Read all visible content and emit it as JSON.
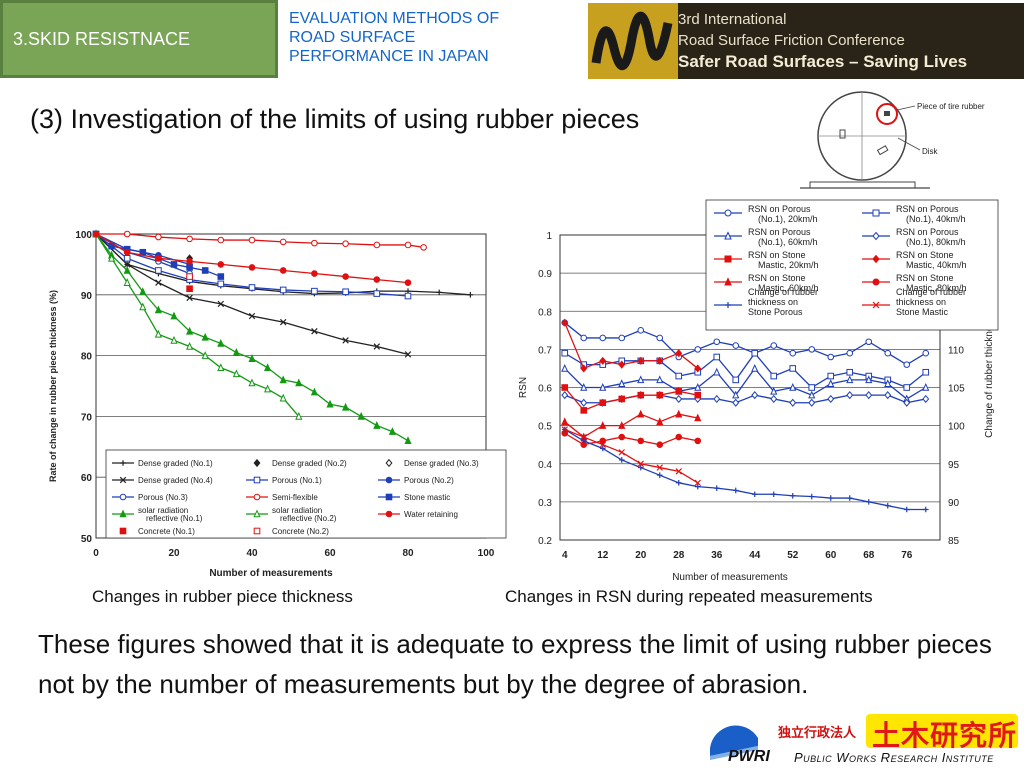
{
  "header": {
    "section_tab": "3.SKID RESISTNACE",
    "subtitle_lines": [
      "EVALUATION METHODS OF",
      "ROAD SURFACE",
      "PERFORMANCE IN JAPAN"
    ],
    "conference_lines": [
      "3rd International",
      "Road Surface Friction Conference",
      "Safer Road Surfaces – Saving Lives"
    ]
  },
  "heading": "(3) Investigation of the limits of using rubber pieces",
  "diagram": {
    "label_rubber": "Piece of tire rubber",
    "label_disk": "Disk"
  },
  "captions": {
    "left": "Changes in rubber piece thickness",
    "right": "Changes in RSN during repeated measurements"
  },
  "body_text": "These figures showed that it is adequate to express the limit of using rubber pieces not by the number of measurements but by the degree of abrasion.",
  "logo": {
    "jp_small": "独立行政法人",
    "jp_large": "土木研究所",
    "en": "Public Works Research Institute",
    "mark": "PWRI"
  },
  "colors": {
    "blue": "#1f3fb8",
    "red": "#e01010",
    "green": "#129a12",
    "black": "#222222",
    "tab_green": "#7aa456"
  },
  "chart_data": [
    {
      "type": "line",
      "ylabel": "Rate of change in rubber piece thickness (%)",
      "xlabel": "Number of measurements",
      "xlim": [
        0,
        100
      ],
      "ylim": [
        50,
        100
      ],
      "xticks": [
        0,
        20,
        40,
        60,
        80,
        100
      ],
      "yticks": [
        50,
        60,
        70,
        80,
        90,
        100
      ],
      "grid": true,
      "legend_position": "bottom",
      "series": [
        {
          "name": "Dense graded (No.1)",
          "color": "#222222",
          "marker": "plus",
          "x": [
            0,
            8,
            16,
            24,
            32,
            40,
            48,
            56,
            64,
            72,
            80,
            88,
            96
          ],
          "y": [
            100,
            95,
            93.5,
            92.2,
            91.5,
            91,
            90.5,
            90.2,
            90.3,
            90.6,
            90.6,
            90.4,
            90
          ]
        },
        {
          "name": "Dense graded (No.2)",
          "color": "#222222",
          "marker": "diamond-filled",
          "x": [
            24
          ],
          "y": [
            96
          ]
        },
        {
          "name": "Dense graded (No.3)",
          "color": "#222222",
          "marker": "diamond-open",
          "x": [
            24
          ],
          "y": [
            94.5
          ]
        },
        {
          "name": "Dense graded (No.4)",
          "color": "#222222",
          "marker": "x",
          "x": [
            0,
            8,
            16,
            24,
            32,
            40,
            48,
            56,
            64,
            72,
            80
          ],
          "y": [
            100,
            95,
            92,
            89.5,
            88.5,
            86.5,
            85.5,
            84,
            82.5,
            81.5,
            80.2
          ]
        },
        {
          "name": "Porous (No.1)",
          "color": "#1f3fb8",
          "marker": "square-open",
          "x": [
            0,
            8,
            16,
            24,
            32,
            40,
            48,
            56,
            64,
            72,
            80
          ],
          "y": [
            100,
            96,
            94,
            92.5,
            91.8,
            91.2,
            90.8,
            90.6,
            90.5,
            90.2,
            89.8
          ]
        },
        {
          "name": "Porous (No.2)",
          "color": "#1f3fb8",
          "marker": "circle-filled",
          "x": [
            0,
            8,
            16,
            24
          ],
          "y": [
            100,
            97.5,
            96.5,
            95
          ]
        },
        {
          "name": "Porous (No.3)",
          "color": "#1f3fb8",
          "marker": "circle-open",
          "x": [
            0,
            8,
            16,
            24
          ],
          "y": [
            100,
            97,
            95.5,
            93.5
          ]
        },
        {
          "name": "Semi-flexible",
          "color": "#e01010",
          "marker": "circle-open",
          "x": [
            0,
            8,
            16,
            24,
            32,
            40,
            48,
            56,
            64,
            72,
            80,
            84
          ],
          "y": [
            100,
            100,
            99.5,
            99.2,
            99,
            99,
            98.7,
            98.5,
            98.4,
            98.2,
            98.2,
            97.8
          ]
        },
        {
          "name": "Stone mastic",
          "color": "#1f3fb8",
          "marker": "square-filled",
          "x": [
            0,
            4,
            8,
            12,
            16,
            20,
            24,
            28,
            32
          ],
          "y": [
            100,
            98,
            97.5,
            97,
            96,
            95,
            94.5,
            94,
            93
          ]
        },
        {
          "name": "solar radiation reflective (No.1)",
          "color": "#129a12",
          "marker": "triangle-filled",
          "x": [
            0,
            4,
            8,
            12,
            16,
            20,
            24,
            28,
            32,
            36,
            40,
            44,
            48,
            52,
            56,
            60,
            64,
            68,
            72,
            76,
            80
          ],
          "y": [
            100,
            96.5,
            94,
            90.5,
            87.5,
            86.5,
            84,
            83,
            82,
            80.5,
            79.5,
            78,
            76,
            75.5,
            74,
            72,
            71.5,
            70,
            68.5,
            67.5,
            66
          ]
        },
        {
          "name": "solar radiation reflective (No.2)",
          "color": "#129a12",
          "marker": "triangle-open",
          "x": [
            0,
            4,
            8,
            12,
            16,
            20,
            24,
            28,
            32,
            36,
            40,
            44,
            48,
            52
          ],
          "y": [
            100,
            96,
            92,
            88,
            83.5,
            82.5,
            81.5,
            80,
            78,
            77,
            75.5,
            74.5,
            73,
            70
          ]
        },
        {
          "name": "Water retaining",
          "color": "#e01010",
          "marker": "circle-filled",
          "x": [
            0,
            8,
            16,
            24,
            32,
            40,
            48,
            56,
            64,
            72,
            80
          ],
          "y": [
            100,
            97,
            96,
            95.5,
            95,
            94.5,
            94,
            93.5,
            93,
            92.5,
            92
          ]
        },
        {
          "name": "Concrete (No.1)",
          "color": "#e01010",
          "marker": "square-filled",
          "x": [
            24
          ],
          "y": [
            91
          ]
        },
        {
          "name": "Concrete (No.2)",
          "color": "#e01010",
          "marker": "square-open",
          "x": [
            24
          ],
          "y": [
            93
          ]
        }
      ]
    },
    {
      "type": "line",
      "xlabel": "Number of measurements",
      "ylabel": "RSN",
      "y2label": "Change of rubber thickness (%)",
      "x_categories": [
        "4",
        "12",
        "20",
        "28",
        "36",
        "44",
        "52",
        "60",
        "68",
        "76"
      ],
      "xlim": [
        3,
        83
      ],
      "ylim": [
        0.2,
        1.0
      ],
      "y2lim": [
        85,
        125
      ],
      "yticks": [
        0.2,
        0.3,
        0.4,
        0.5,
        0.6,
        0.7,
        0.8,
        0.9,
        1
      ],
      "y2ticks": [
        85,
        90,
        95,
        100,
        105,
        110
      ],
      "grid": true,
      "legend_position": "top-right",
      "series": [
        {
          "name": "RSN on Porous (No.1), 20km/h",
          "axis": "left",
          "color": "#1f3fb8",
          "marker": "circle-open",
          "x": [
            4,
            8,
            12,
            16,
            20,
            24,
            28,
            32,
            36,
            40,
            44,
            48,
            52,
            56,
            60,
            64,
            68,
            72,
            76,
            80
          ],
          "y": [
            0.77,
            0.73,
            0.73,
            0.73,
            0.75,
            0.73,
            0.68,
            0.7,
            0.72,
            0.71,
            0.69,
            0.71,
            0.69,
            0.7,
            0.68,
            0.69,
            0.72,
            0.69,
            0.66,
            0.69
          ]
        },
        {
          "name": "RSN on Porous (No.1), 40km/h",
          "axis": "left",
          "color": "#1f3fb8",
          "marker": "square-open",
          "x": [
            4,
            8,
            12,
            16,
            20,
            24,
            28,
            32,
            36,
            40,
            44,
            48,
            52,
            56,
            60,
            64,
            68,
            72,
            76,
            80
          ],
          "y": [
            0.69,
            0.66,
            0.66,
            0.67,
            0.67,
            0.67,
            0.63,
            0.64,
            0.68,
            0.62,
            0.69,
            0.63,
            0.65,
            0.6,
            0.63,
            0.64,
            0.63,
            0.62,
            0.6,
            0.64
          ]
        },
        {
          "name": "RSN on Porous (No.1), 60km/h",
          "axis": "left",
          "color": "#1f3fb8",
          "marker": "triangle-open",
          "x": [
            4,
            8,
            12,
            16,
            20,
            24,
            28,
            32,
            36,
            40,
            44,
            48,
            52,
            56,
            60,
            64,
            68,
            72,
            76,
            80
          ],
          "y": [
            0.65,
            0.6,
            0.6,
            0.61,
            0.62,
            0.62,
            0.59,
            0.6,
            0.64,
            0.58,
            0.65,
            0.59,
            0.6,
            0.58,
            0.61,
            0.62,
            0.62,
            0.61,
            0.57,
            0.6
          ]
        },
        {
          "name": "RSN on Porous (No.1), 80km/h",
          "axis": "left",
          "color": "#1f3fb8",
          "marker": "diamond-open",
          "x": [
            4,
            8,
            12,
            16,
            20,
            24,
            28,
            32,
            36,
            40,
            44,
            48,
            52,
            56,
            60,
            64,
            68,
            72,
            76,
            80
          ],
          "y": [
            0.58,
            0.56,
            0.56,
            0.57,
            0.58,
            0.58,
            0.57,
            0.57,
            0.57,
            0.56,
            0.58,
            0.57,
            0.56,
            0.56,
            0.57,
            0.58,
            0.58,
            0.58,
            0.56,
            0.57
          ]
        },
        {
          "name": "RSN on Stone Mastic, 20km/h",
          "axis": "left",
          "color": "#e01010",
          "marker": "square-filled",
          "x": [
            4,
            8,
            12,
            16,
            20,
            24,
            28,
            32
          ],
          "y": [
            0.6,
            0.54,
            0.56,
            0.57,
            0.58,
            0.58,
            0.59,
            0.58
          ]
        },
        {
          "name": "RSN on Stone Mastic, 40km/h",
          "axis": "left",
          "color": "#e01010",
          "marker": "diamond-filled",
          "x": [
            4,
            8,
            12,
            16,
            20,
            24,
            28,
            32
          ],
          "y": [
            0.77,
            0.65,
            0.67,
            0.66,
            0.67,
            0.67,
            0.69,
            0.65
          ]
        },
        {
          "name": "RSN on Stone Mastic, 60km/h",
          "axis": "left",
          "color": "#e01010",
          "marker": "triangle-filled",
          "x": [
            4,
            8,
            12,
            16,
            20,
            24,
            28,
            32
          ],
          "y": [
            0.51,
            0.47,
            0.5,
            0.5,
            0.53,
            0.51,
            0.53,
            0.52
          ]
        },
        {
          "name": "RSN on Stone Mastic, 80km/h",
          "axis": "left",
          "color": "#e01010",
          "marker": "circle-filled",
          "x": [
            4,
            8,
            12,
            16,
            20,
            24,
            28,
            32
          ],
          "y": [
            0.48,
            0.45,
            0.46,
            0.47,
            0.46,
            0.45,
            0.47,
            0.46
          ]
        },
        {
          "name": "Change of rubber thickness on Stone Porous",
          "axis": "right",
          "color": "#1f3fb8",
          "marker": "plus",
          "x": [
            4,
            8,
            12,
            16,
            20,
            24,
            28,
            32,
            36,
            40,
            44,
            48,
            52,
            56,
            60,
            64,
            68,
            72,
            76,
            80
          ],
          "y": [
            99.5,
            98,
            97,
            95.5,
            94.5,
            93.5,
            92.5,
            92,
            91.8,
            91.5,
            91,
            91,
            90.8,
            90.7,
            90.5,
            90.5,
            90,
            89.5,
            89,
            89
          ]
        },
        {
          "name": "Change of rubber thickness on Stone Mastic",
          "axis": "right",
          "color": "#e01010",
          "marker": "x",
          "x": [
            4,
            8,
            12,
            16,
            20,
            24,
            28,
            32
          ],
          "y": [
            99.5,
            98.5,
            97.5,
            96.5,
            95,
            94.5,
            94,
            92.5
          ]
        }
      ]
    }
  ]
}
